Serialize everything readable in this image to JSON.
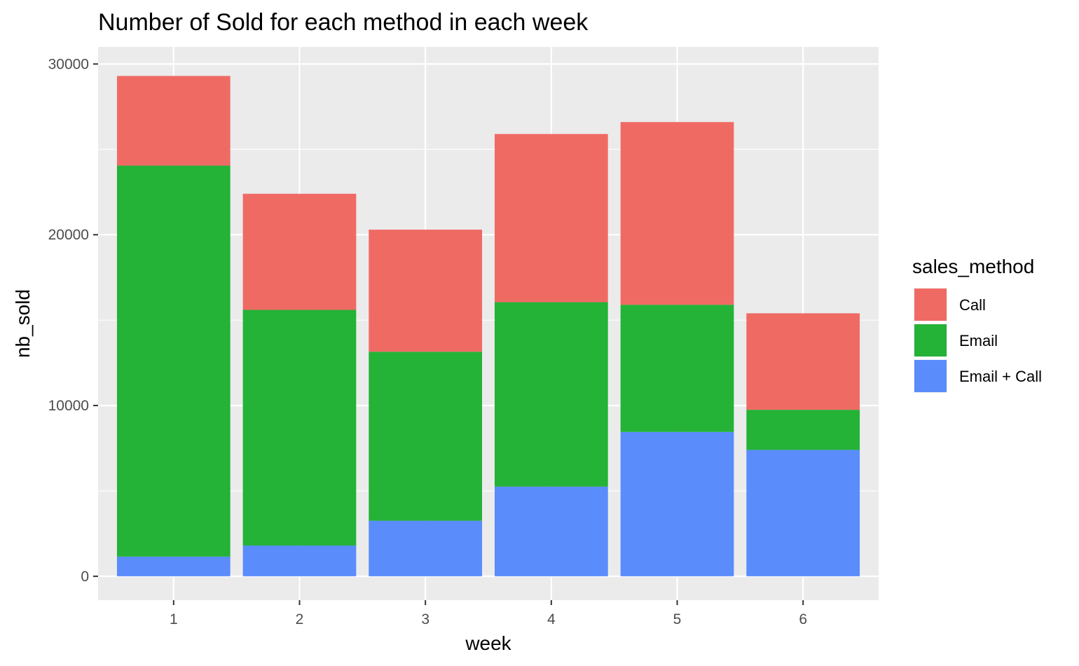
{
  "chart_data": {
    "type": "bar",
    "stacked": true,
    "title": "Number of Sold for each method in each week",
    "xlabel": "week",
    "ylabel": "nb_sold",
    "categories": [
      "1",
      "2",
      "3",
      "4",
      "5",
      "6"
    ],
    "y_ticks": [
      0,
      10000,
      20000,
      30000
    ],
    "y_tick_labels": [
      "0",
      "10000",
      "20000",
      "30000"
    ],
    "ylim": [
      -1400,
      31000
    ],
    "grid": true,
    "legend": {
      "title": "sales_method",
      "position": "right"
    },
    "series": [
      {
        "name": "Email + Call",
        "color": "#5A8CFC",
        "values": [
          1150,
          1800,
          3250,
          5250,
          8450,
          7400
        ]
      },
      {
        "name": "Email",
        "color": "#24B237",
        "values": [
          22900,
          13800,
          9900,
          10800,
          7450,
          2350
        ]
      },
      {
        "name": "Call",
        "color": "#F06A64",
        "values": [
          5250,
          6800,
          7150,
          9850,
          10700,
          5650
        ]
      }
    ],
    "legend_order": [
      "Call",
      "Email",
      "Email + Call"
    ]
  },
  "colors": {
    "panel_background": "#EBEBEB",
    "grid_line": "#FFFFFF"
  }
}
